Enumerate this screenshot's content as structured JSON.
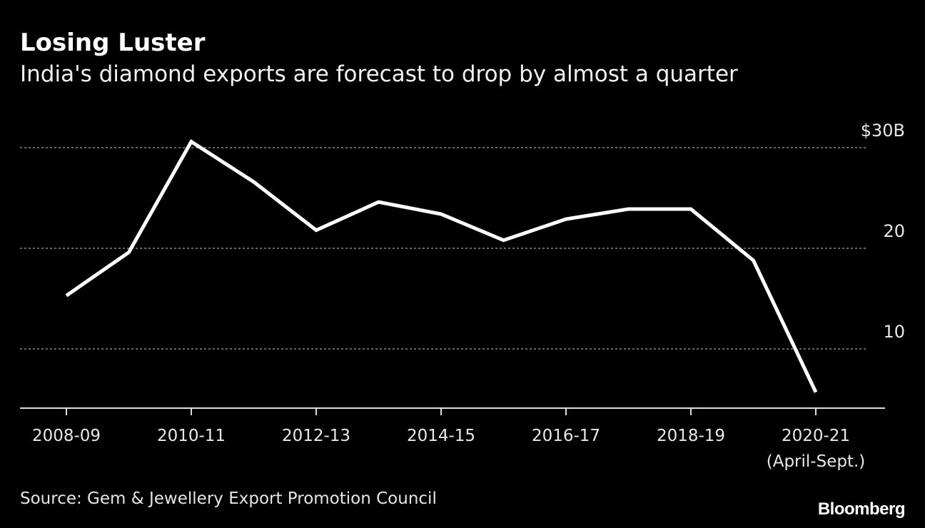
{
  "title": "Losing Luster",
  "subtitle": "India's diamond exports are forecast to drop by almost a quarter",
  "source": "Source: Gem & Jewellery Export Promotion Council",
  "brand": "Bloomberg",
  "chart_data": {
    "type": "line",
    "title": "Losing Luster",
    "subtitle": "India's diamond exports are forecast to drop by almost a quarter",
    "xlabel": "",
    "ylabel": "",
    "x": [
      "2008-09",
      "2009-10",
      "2010-11",
      "2011-12",
      "2012-13",
      "2013-14",
      "2014-15",
      "2015-16",
      "2016-17",
      "2017-18",
      "2018-19",
      "2019-20",
      "2020-21"
    ],
    "series": [
      {
        "name": "Diamond exports ($B)",
        "values": [
          15.3,
          19.6,
          30.6,
          26.6,
          21.8,
          24.6,
          23.4,
          20.8,
          22.9,
          23.9,
          23.9,
          18.8,
          5.7
        ],
        "color": "#ffffff"
      }
    ],
    "x_tick_labels": [
      "2008-09",
      "2010-11",
      "2012-13",
      "2014-15",
      "2016-17",
      "2018-19",
      "2020-21"
    ],
    "x_tick_note": "(April-Sept.)",
    "y_ticks": [
      {
        "value": 30,
        "label": "$30B"
      },
      {
        "value": 20,
        "label": "20"
      },
      {
        "value": 10,
        "label": "10"
      }
    ],
    "ylim": [
      4.1,
      32
    ],
    "grid": true,
    "grid_style": "dotted"
  }
}
